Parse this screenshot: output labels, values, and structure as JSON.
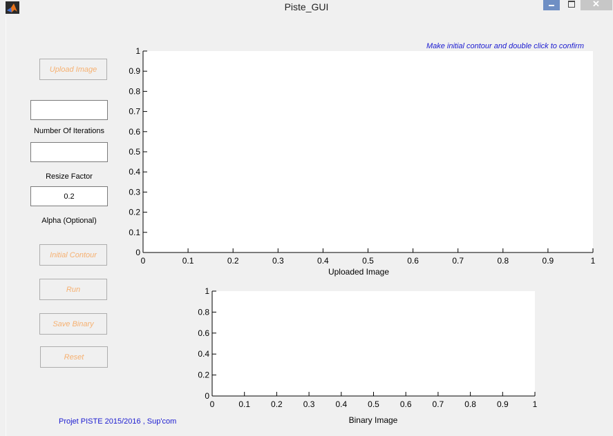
{
  "window": {
    "title": "Piste_GUI"
  },
  "buttons": {
    "upload": "Upload Image",
    "initial_contour": "Initial Contour",
    "run": "Run",
    "save_binary": "Save Binary",
    "reset": "Reset"
  },
  "inputs": {
    "iterations": {
      "value": "",
      "label": "Number Of Iterations"
    },
    "resize": {
      "value": "",
      "label": "Resize Factor"
    },
    "alpha": {
      "value": "0.2",
      "label": "Alpha (Optional)"
    }
  },
  "hint": "Make initial contour and double click to confirm",
  "axes": [
    {
      "xlabel": "Uploaded Image",
      "xticks": [
        "0",
        "0.1",
        "0.2",
        "0.3",
        "0.4",
        "0.5",
        "0.6",
        "0.7",
        "0.8",
        "0.9",
        "1"
      ],
      "yticks": [
        "0",
        "0.1",
        "0.2",
        "0.3",
        "0.4",
        "0.5",
        "0.6",
        "0.7",
        "0.8",
        "0.9",
        "1"
      ]
    },
    {
      "xlabel": "Binary Image",
      "xticks": [
        "0",
        "0.1",
        "0.2",
        "0.3",
        "0.4",
        "0.5",
        "0.6",
        "0.7",
        "0.8",
        "0.9",
        "1"
      ],
      "yticks": [
        "0",
        "0.2",
        "0.4",
        "0.6",
        "0.8",
        "1"
      ]
    }
  ],
  "footer": "Projet PISTE 2015/2016 , Sup'com",
  "colors": {
    "disabled_text": "#f6b070",
    "info_text": "#1a1ad0",
    "plot_bg": "#ffffff"
  }
}
